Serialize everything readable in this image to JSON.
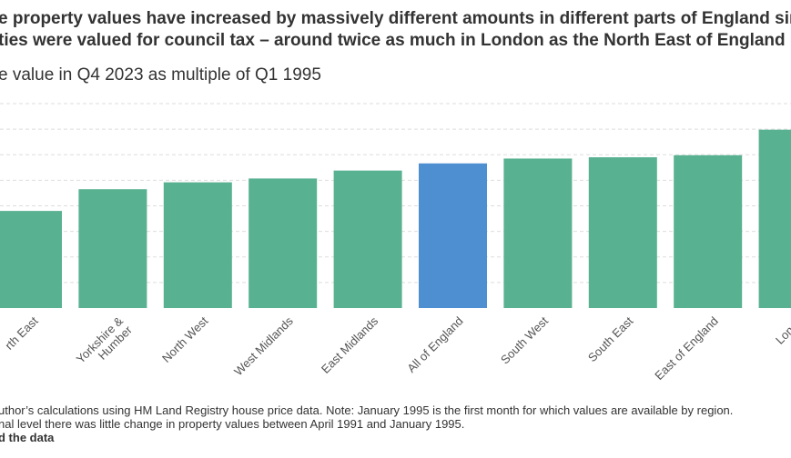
{
  "chart_data": {
    "type": "bar",
    "title_lines": [
      "e property values have increased by massively different amounts in different parts of England since",
      "ties were valued for council tax – around twice as much in London as the North East of England"
    ],
    "subtitle": "e value in Q4 2023 as multiple of Q1 1995",
    "categories": [
      "rth East",
      "Yorkshire & Humber",
      "North West",
      "West Midlands",
      "East Midlands",
      "All of England",
      "South West",
      "South East",
      "East of England",
      "Londo"
    ],
    "values": [
      3.8,
      4.65,
      4.92,
      5.07,
      5.38,
      5.66,
      5.85,
      5.9,
      5.98,
      6.98
    ],
    "highlight_index": 5,
    "colors": {
      "bar": "#58b191",
      "highlight": "#4d8fd1",
      "grid": "#dddddd"
    },
    "ylim": [
      0,
      8
    ],
    "yticks": [
      0,
      1,
      2,
      3,
      4,
      5,
      6,
      7,
      8
    ],
    "grid": true,
    "xlabel": "",
    "ylabel": ""
  },
  "notes": {
    "line1": "uthor’s calculations using HM Land Registry house price data. Note: January 1995 is the first month for which values are available by region.",
    "line2": "nal level there was little change in property values between April 1991 and January 1995.",
    "get_data": "d the data"
  }
}
